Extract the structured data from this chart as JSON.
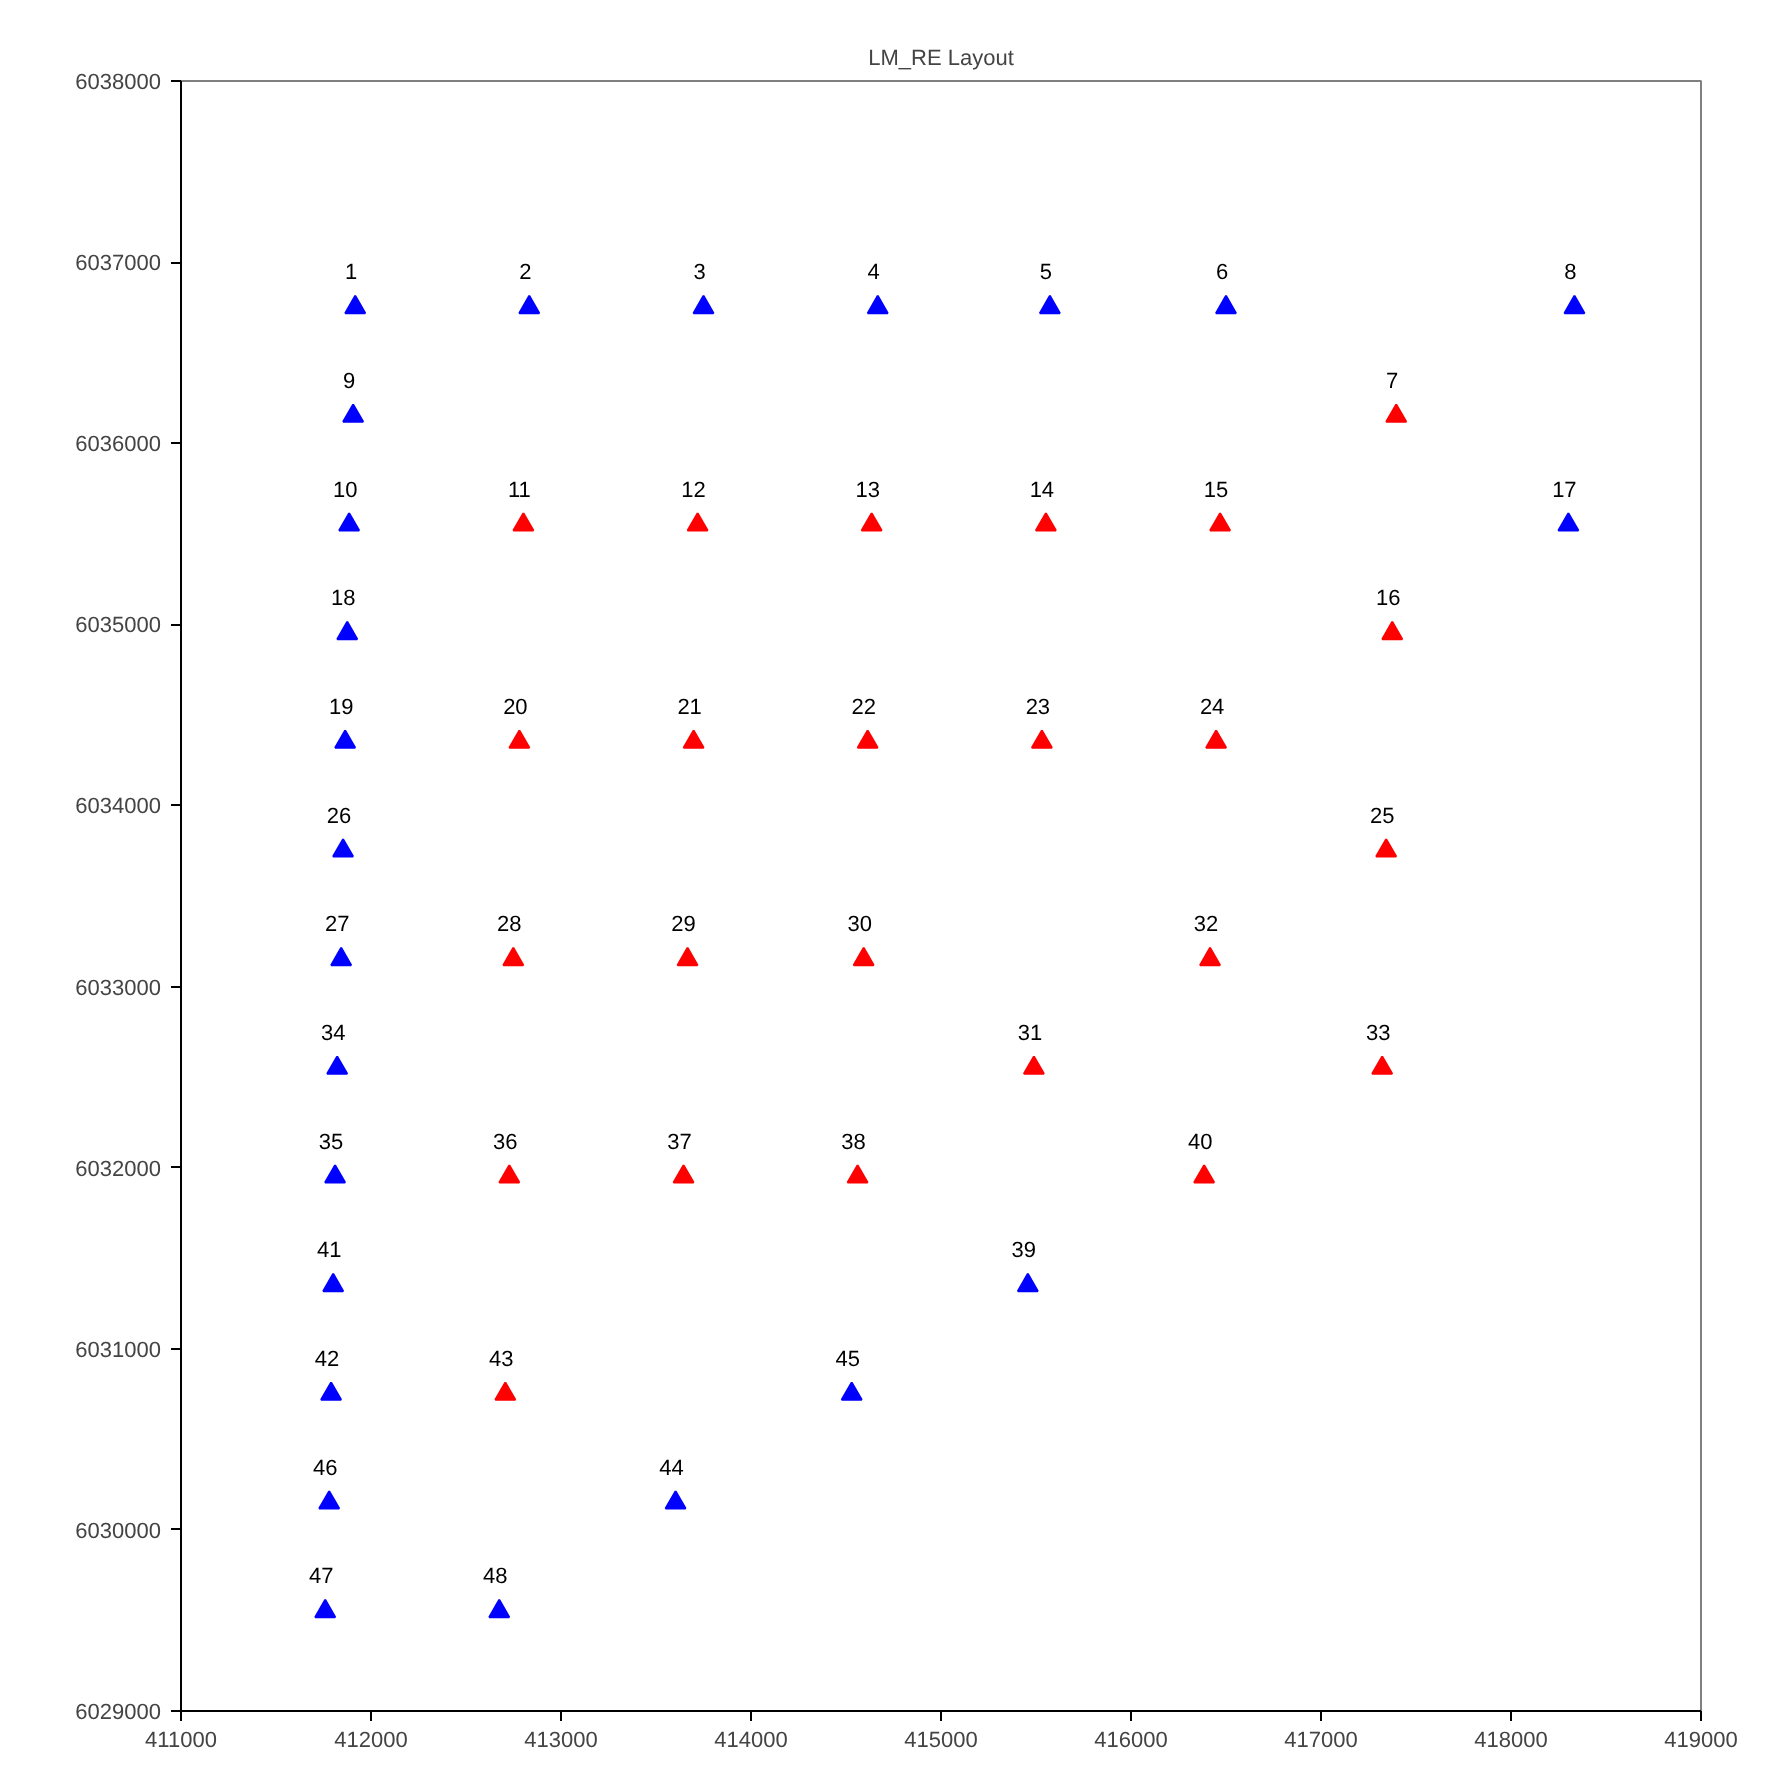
{
  "chart_data": {
    "type": "scatter",
    "title": "LM_RE Layout",
    "marker": "triangle",
    "grid": false,
    "xlim": [
      411000,
      419000
    ],
    "ylim": [
      6029000,
      6038000
    ],
    "xticks": [
      411000,
      412000,
      413000,
      414000,
      415000,
      416000,
      417000,
      418000,
      419000
    ],
    "yticks": [
      6029000,
      6030000,
      6031000,
      6032000,
      6033000,
      6034000,
      6035000,
      6036000,
      6037000,
      6038000
    ],
    "series": [
      {
        "color": "#0000ff",
        "x": [
          411917,
          412833,
          413750,
          414667,
          415573,
          416500,
          418334,
          411906,
          411885,
          418302,
          411875,
          411864,
          411853,
          411843,
          411822,
          411811,
          411801,
          415457,
          411790,
          414530,
          411780,
          413603,
          411759,
          412675
        ],
        "values": [
          6036750,
          6036750,
          6036750,
          6036750,
          6036750,
          6036750,
          6036750,
          6036150,
          6035550,
          6035550,
          6034950,
          6034350,
          6033750,
          6033150,
          6032550,
          6031950,
          6031350,
          6031350,
          6030750,
          6030750,
          6030150,
          6030150,
          6029550,
          6029550
        ]
      },
      {
        "color": "#ff0000",
        "x": [
          417396,
          412802,
          413719,
          414635,
          415552,
          416469,
          417375,
          412781,
          413698,
          414614,
          415531,
          416448,
          417343,
          412749,
          413666,
          414593,
          416416,
          415489,
          417322,
          412728,
          413645,
          414561,
          416385,
          412707
        ],
        "values": [
          6036150,
          6035550,
          6035550,
          6035550,
          6035550,
          6035550,
          6034950,
          6034350,
          6034350,
          6034350,
          6034350,
          6034350,
          6033750,
          6033150,
          6033150,
          6033150,
          6033150,
          6032550,
          6032550,
          6031950,
          6031950,
          6031950,
          6031950,
          6030750
        ]
      }
    ],
    "annotations": [
      {
        "text": "1",
        "x": 411917,
        "y": 6036750
      },
      {
        "text": "2",
        "x": 412833,
        "y": 6036750
      },
      {
        "text": "3",
        "x": 413750,
        "y": 6036750
      },
      {
        "text": "4",
        "x": 414667,
        "y": 6036750
      },
      {
        "text": "5",
        "x": 415573,
        "y": 6036750
      },
      {
        "text": "6",
        "x": 416500,
        "y": 6036750
      },
      {
        "text": "7",
        "x": 417396,
        "y": 6036150
      },
      {
        "text": "8",
        "x": 418334,
        "y": 6036750
      },
      {
        "text": "9",
        "x": 411906,
        "y": 6036150
      },
      {
        "text": "10",
        "x": 411885,
        "y": 6035550
      },
      {
        "text": "11",
        "x": 412802,
        "y": 6035550
      },
      {
        "text": "12",
        "x": 413719,
        "y": 6035550
      },
      {
        "text": "13",
        "x": 414635,
        "y": 6035550
      },
      {
        "text": "14",
        "x": 415552,
        "y": 6035550
      },
      {
        "text": "15",
        "x": 416469,
        "y": 6035550
      },
      {
        "text": "16",
        "x": 417375,
        "y": 6034950
      },
      {
        "text": "17",
        "x": 418302,
        "y": 6035550
      },
      {
        "text": "18",
        "x": 411875,
        "y": 6034950
      },
      {
        "text": "19",
        "x": 411864,
        "y": 6034350
      },
      {
        "text": "20",
        "x": 412781,
        "y": 6034350
      },
      {
        "text": "21",
        "x": 413698,
        "y": 6034350
      },
      {
        "text": "22",
        "x": 414614,
        "y": 6034350
      },
      {
        "text": "23",
        "x": 415531,
        "y": 6034350
      },
      {
        "text": "24",
        "x": 416448,
        "y": 6034350
      },
      {
        "text": "25",
        "x": 417343,
        "y": 6033750
      },
      {
        "text": "26",
        "x": 411853,
        "y": 6033750
      },
      {
        "text": "27",
        "x": 411843,
        "y": 6033150
      },
      {
        "text": "28",
        "x": 412749,
        "y": 6033150
      },
      {
        "text": "29",
        "x": 413666,
        "y": 6033150
      },
      {
        "text": "30",
        "x": 414593,
        "y": 6033150
      },
      {
        "text": "31",
        "x": 415489,
        "y": 6032550
      },
      {
        "text": "32",
        "x": 416416,
        "y": 6033150
      },
      {
        "text": "33",
        "x": 417322,
        "y": 6032550
      },
      {
        "text": "34",
        "x": 411822,
        "y": 6032550
      },
      {
        "text": "35",
        "x": 411811,
        "y": 6031950
      },
      {
        "text": "36",
        "x": 412728,
        "y": 6031950
      },
      {
        "text": "37",
        "x": 413645,
        "y": 6031950
      },
      {
        "text": "38",
        "x": 414561,
        "y": 6031950
      },
      {
        "text": "39",
        "x": 415457,
        "y": 6031350
      },
      {
        "text": "40",
        "x": 416385,
        "y": 6031950
      },
      {
        "text": "41",
        "x": 411801,
        "y": 6031350
      },
      {
        "text": "42",
        "x": 411790,
        "y": 6030750
      },
      {
        "text": "43",
        "x": 412707,
        "y": 6030750
      },
      {
        "text": "44",
        "x": 413603,
        "y": 6030150
      },
      {
        "text": "45",
        "x": 414530,
        "y": 6030750
      },
      {
        "text": "46",
        "x": 411780,
        "y": 6030150
      },
      {
        "text": "47",
        "x": 411759,
        "y": 6029550
      },
      {
        "text": "48",
        "x": 412675,
        "y": 6029550
      }
    ]
  }
}
